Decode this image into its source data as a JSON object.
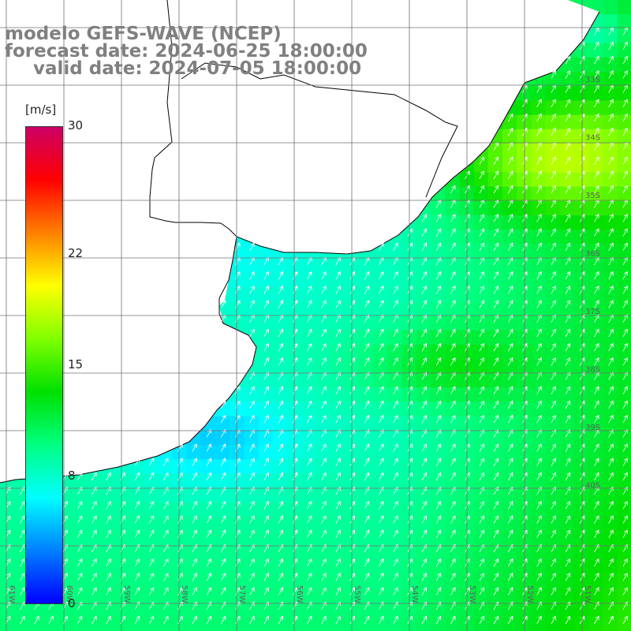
{
  "title": {
    "line1": "modelo GEFS-WAVE (NCEP)",
    "line2": "forecast date: 2024-06-25 18:00:00",
    "line3": "valid date: 2024-07-05 18:00:00"
  },
  "colorbar": {
    "unit": "[m/s]",
    "ticks": [
      {
        "label": "30",
        "value": 30
      },
      {
        "label": "22",
        "value": 22
      },
      {
        "label": "15",
        "value": 15
      },
      {
        "label": "8",
        "value": 8
      },
      {
        "label": "0",
        "value": 0
      }
    ],
    "stops": [
      "#0000ff",
      "#0080ff",
      "#00ffff",
      "#00ff80",
      "#00e000",
      "#80ff00",
      "#ffff00",
      "#ff8000",
      "#ff0000",
      "#cc0066"
    ]
  },
  "map": {
    "lat_labels": [
      "33S",
      "34S",
      "35S",
      "36S",
      "37S",
      "38S",
      "39S",
      "40S"
    ],
    "lon_labels": [
      "61W",
      "60W",
      "59W",
      "58W",
      "57W",
      "56W",
      "55W",
      "54W",
      "53W",
      "52W",
      "51W"
    ],
    "colors": {
      "land": "#ffffff",
      "coast": "#000000",
      "grid": "#707070",
      "arrow": "#ffffff"
    },
    "wind_direction_deg": 30
  }
}
